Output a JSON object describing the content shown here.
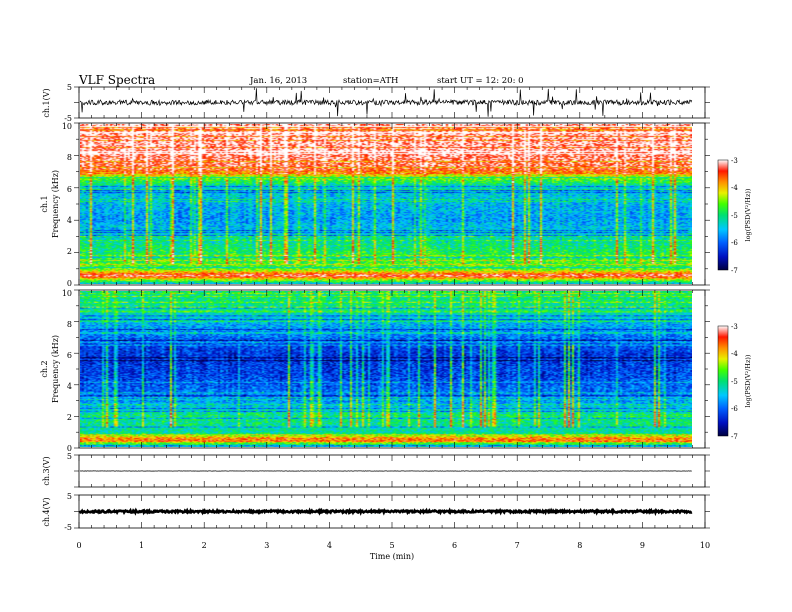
{
  "header": {
    "title": "VLF  Spectra",
    "date": "Jan. 16, 2013",
    "station": "station=ATH",
    "start": "start  UT =   12: 20: 0"
  },
  "chart_data": {
    "type": "heatmap",
    "time_axis": {
      "label": "Time  (min)",
      "range": [
        0,
        10
      ],
      "ticks": [
        "0",
        "1",
        "2",
        "3",
        "4",
        "5",
        "6",
        "7",
        "8",
        "9",
        "10"
      ],
      "data_end": 9.8
    },
    "panels": [
      {
        "id": "ch1v",
        "kind": "waveform",
        "ylabel": "ch.1(V)",
        "ylim": [
          -5,
          5
        ],
        "yticks": [
          "5",
          "-5"
        ],
        "baseline": 0,
        "amplitude": 0.8
      },
      {
        "id": "ch1spec",
        "kind": "spectrogram",
        "ylabel_top": "ch.1",
        "ylabel": "Frequency  (kHz)",
        "ylim": [
          0,
          10
        ],
        "yticks": [
          "10",
          "8",
          "6",
          "4",
          "2",
          "0"
        ],
        "colorbar": {
          "label": "log(PSD(V²/Hz))",
          "range": [
            -7,
            -3
          ],
          "ticks": [
            "-3",
            "-4",
            "-5",
            "-6",
            "-7"
          ]
        },
        "level_profile": [
          [
            0,
            -5.4
          ],
          [
            0.5,
            -3.2
          ],
          [
            0.9,
            -4.6
          ],
          [
            2.0,
            -4.9
          ],
          [
            4.0,
            -5.7
          ],
          [
            6.0,
            -5.4
          ],
          [
            6.6,
            -4.6
          ],
          [
            7.2,
            -3.4
          ],
          [
            8.5,
            -3.1
          ],
          [
            10,
            -3.1
          ]
        ]
      },
      {
        "id": "ch2spec",
        "kind": "spectrogram",
        "ylabel_top": "ch.2",
        "ylabel": "Frequency  (kHz)",
        "ylim": [
          0,
          10
        ],
        "yticks": [
          "10",
          "8",
          "6",
          "4",
          "2",
          "0"
        ],
        "colorbar": {
          "label": "log(PSD(V²/Hz))",
          "range": [
            -7,
            -3
          ],
          "ticks": [
            "-3",
            "-4",
            "-5",
            "-6",
            "-7"
          ]
        },
        "level_profile": [
          [
            0,
            -5.4
          ],
          [
            0.5,
            -3.6
          ],
          [
            0.9,
            -5.2
          ],
          [
            2.0,
            -5.0
          ],
          [
            3.0,
            -5.8
          ],
          [
            4.5,
            -6.2
          ],
          [
            6.0,
            -6.3
          ],
          [
            8.0,
            -5.6
          ],
          [
            9.0,
            -5.1
          ],
          [
            10,
            -5.0
          ]
        ]
      },
      {
        "id": "ch3v",
        "kind": "waveform",
        "ylabel": "ch.3(V)",
        "ylim": [
          -5,
          5
        ],
        "yticks": [
          "5",
          ""
        ],
        "baseline": 0,
        "amplitude": 0.05
      },
      {
        "id": "ch4v",
        "kind": "waveform",
        "ylabel": "ch.4(V)",
        "ylim": [
          -5,
          5
        ],
        "yticks": [
          "5",
          "-5"
        ],
        "baseline": 0,
        "amplitude": 0.3
      }
    ]
  }
}
